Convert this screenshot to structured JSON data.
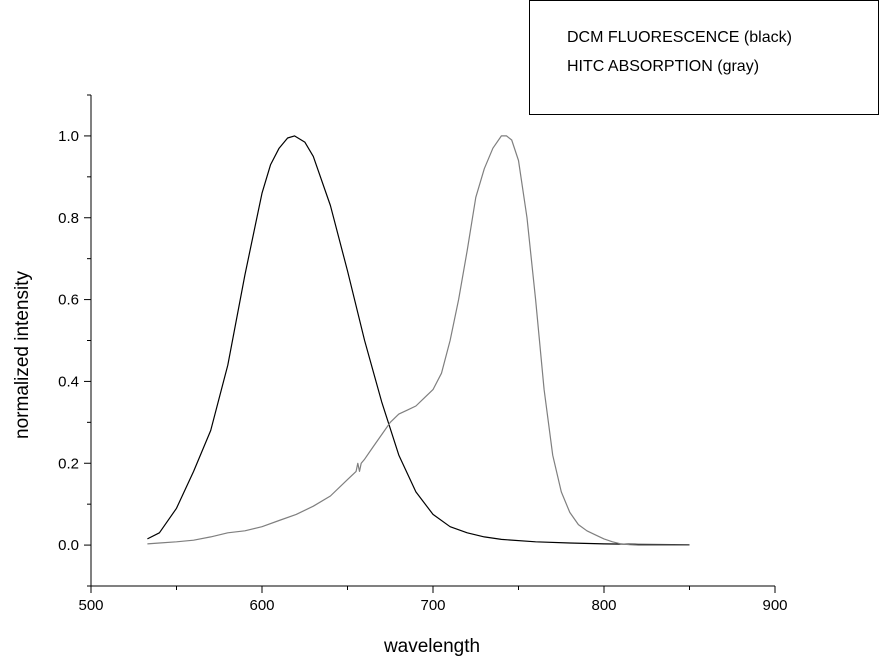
{
  "chart_data": {
    "type": "line",
    "xlabel": "wavelength",
    "ylabel": "normalized intensity",
    "xlim": [
      500,
      900
    ],
    "ylim": [
      -0.1,
      1.1
    ],
    "x_ticks": [
      500,
      600,
      700,
      800,
      900
    ],
    "y_ticks": [
      0.0,
      0.2,
      0.4,
      0.6,
      0.8,
      1.0
    ],
    "x_tick_labels": [
      "500",
      "600",
      "700",
      "800",
      "900"
    ],
    "y_tick_labels": [
      "0.0",
      "0.2",
      "0.4",
      "0.6",
      "0.8",
      "1.0"
    ],
    "grid": false,
    "legend_position": "top-right",
    "legend": [
      "DCM FLUORESCENCE (black)",
      "HITC ABSORPTION (gray)"
    ],
    "series": [
      {
        "color": "#000000",
        "x": [
          533,
          540,
          550,
          560,
          570,
          580,
          590,
          600,
          605,
          610,
          615,
          619,
          625,
          630,
          640,
          650,
          660,
          670,
          680,
          690,
          700,
          710,
          720,
          730,
          740,
          760,
          780,
          800,
          820,
          850
        ],
        "y": [
          0.015,
          0.03,
          0.09,
          0.18,
          0.28,
          0.44,
          0.66,
          0.86,
          0.93,
          0.97,
          0.995,
          1.0,
          0.985,
          0.95,
          0.83,
          0.67,
          0.5,
          0.35,
          0.22,
          0.13,
          0.075,
          0.045,
          0.03,
          0.02,
          0.014,
          0.008,
          0.005,
          0.003,
          0.002,
          0.001
        ]
      },
      {
        "color": "#7f7f7f",
        "x": [
          533,
          540,
          550,
          560,
          570,
          580,
          590,
          600,
          610,
          620,
          630,
          640,
          650,
          655,
          656,
          657,
          658,
          660,
          665,
          670,
          675,
          680,
          685,
          690,
          695,
          700,
          705,
          710,
          715,
          720,
          725,
          730,
          735,
          740,
          743,
          746,
          750,
          755,
          760,
          765,
          770,
          775,
          780,
          785,
          790,
          795,
          800,
          805,
          810,
          815,
          820,
          850
        ],
        "y": [
          0.003,
          0.005,
          0.008,
          0.012,
          0.02,
          0.03,
          0.035,
          0.045,
          0.06,
          0.075,
          0.095,
          0.12,
          0.16,
          0.18,
          0.2,
          0.18,
          0.2,
          0.21,
          0.24,
          0.27,
          0.3,
          0.32,
          0.33,
          0.34,
          0.36,
          0.38,
          0.42,
          0.5,
          0.6,
          0.72,
          0.85,
          0.92,
          0.97,
          1.0,
          1.0,
          0.99,
          0.94,
          0.8,
          0.6,
          0.38,
          0.22,
          0.13,
          0.08,
          0.05,
          0.035,
          0.025,
          0.015,
          0.008,
          0.003,
          0.001,
          0.0,
          0.0
        ]
      }
    ]
  }
}
